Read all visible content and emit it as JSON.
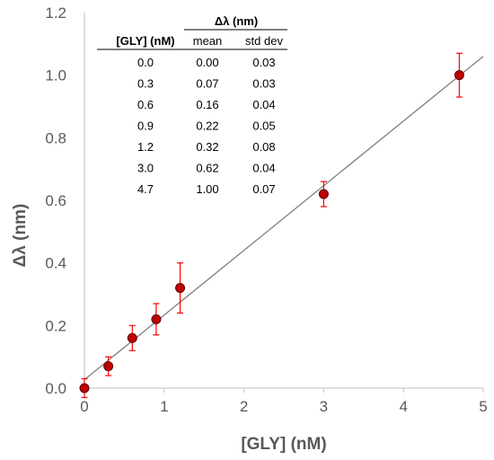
{
  "chart_data": {
    "type": "scatter",
    "xlabel": "[GLY] (nM)",
    "ylabel": "Δλ (nm)",
    "xlim": [
      0,
      5
    ],
    "ylim": [
      0,
      1.2
    ],
    "x_ticks": [
      "0",
      "1",
      "2",
      "3",
      "4",
      "5"
    ],
    "y_ticks": [
      "0.0",
      "0.2",
      "0.4",
      "0.6",
      "0.8",
      "1.0",
      "1.2"
    ],
    "grid": false,
    "series": [
      {
        "x": [
          0.0,
          0.3,
          0.6,
          0.9,
          1.2,
          3.0,
          4.7
        ],
        "y": [
          0.0,
          0.07,
          0.16,
          0.22,
          0.32,
          0.62,
          1.0
        ],
        "error": [
          0.03,
          0.03,
          0.04,
          0.05,
          0.08,
          0.04,
          0.07
        ],
        "marker_color": "#c00000",
        "error_color": "#ff0000"
      }
    ],
    "fit_line": {
      "x": [
        0,
        5
      ],
      "y": [
        0.027,
        1.06
      ],
      "color": "#808080"
    },
    "table": {
      "group_header": "Δλ (nm)",
      "columns": [
        "[GLY] (nM)",
        "mean",
        "std dev"
      ],
      "rows": [
        [
          "0.0",
          "0.00",
          "0.03"
        ],
        [
          "0.3",
          "0.07",
          "0.03"
        ],
        [
          "0.6",
          "0.16",
          "0.04"
        ],
        [
          "0.9",
          "0.22",
          "0.05"
        ],
        [
          "1.2",
          "0.32",
          "0.08"
        ],
        [
          "3.0",
          "0.62",
          "0.04"
        ],
        [
          "4.7",
          "1.00",
          "0.07"
        ]
      ]
    }
  }
}
